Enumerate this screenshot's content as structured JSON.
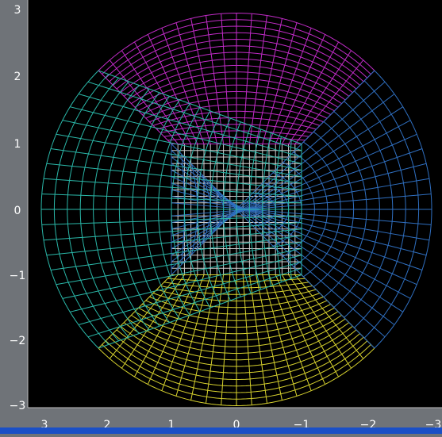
{
  "figure": {
    "x_ticks": [
      "3",
      "2",
      "1",
      "0",
      "−1",
      "−2",
      "−3"
    ],
    "y_ticks": [
      "3",
      "2",
      "1",
      "0",
      "−1",
      "−2",
      "−3"
    ],
    "x_range": [
      3.3,
      -3.0
    ],
    "y_range": [
      -3.2,
      3.15
    ],
    "grid": {
      "center_square": {
        "half_size": 1,
        "divisions": 20,
        "color": "#cfcfcf"
      },
      "outer_radius": 3,
      "radial_lines_per_sector": 20,
      "rings_per_sector": 20
    },
    "sectors": [
      {
        "name": "top",
        "color": "#c02bc6"
      },
      {
        "name": "right",
        "color": "#2ab7a8"
      },
      {
        "name": "bottom",
        "color": "#d6d12e"
      },
      {
        "name": "left",
        "color": "#2f6fc0"
      }
    ],
    "colors": {
      "background": "#000000",
      "frame": "#6f7378",
      "tick_text": "#ffffff",
      "bottom_strip": "#1a4fc6"
    }
  }
}
